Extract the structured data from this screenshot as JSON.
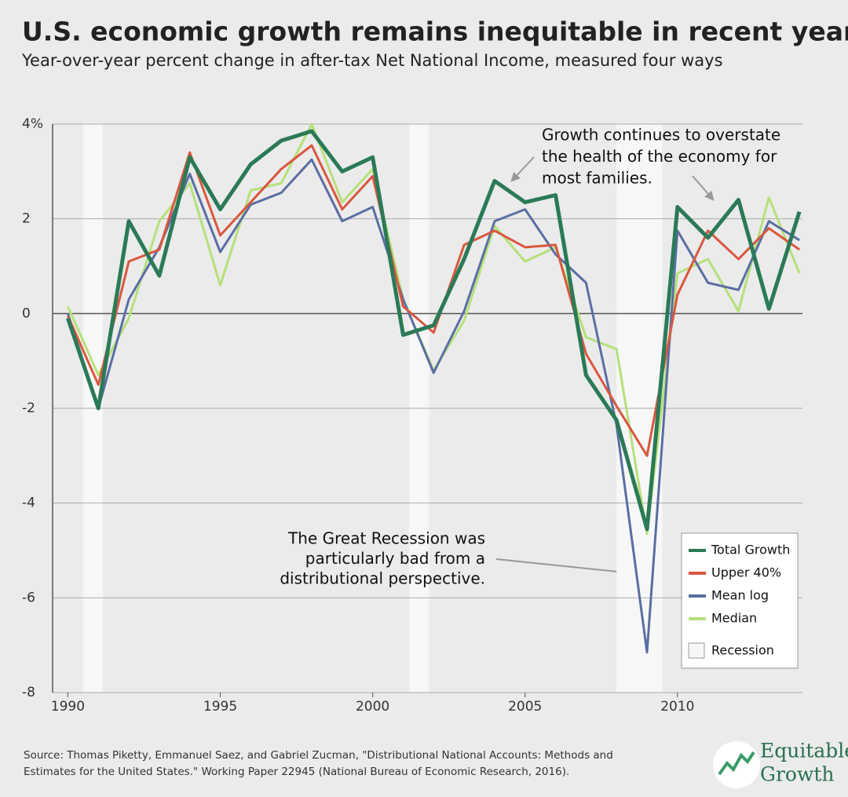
{
  "chart_data": {
    "type": "line",
    "title": "U.S. economic growth remains inequitable in recent years",
    "subtitle": "Year-over-year percent change in after-tax Net National Income, measured four ways",
    "x": [
      1990,
      1991,
      1992,
      1993,
      1994,
      1995,
      1996,
      1997,
      1998,
      1999,
      2000,
      2001,
      2002,
      2003,
      2004,
      2005,
      2006,
      2007,
      2008,
      2009,
      2010,
      2011,
      2012,
      2013,
      2014
    ],
    "series": [
      {
        "name": "Total Growth",
        "color": "#2b7a57",
        "values": [
          -0.1,
          -2.0,
          1.95,
          0.8,
          3.3,
          2.2,
          3.15,
          3.65,
          3.85,
          3.0,
          3.3,
          -0.45,
          -0.25,
          1.15,
          2.8,
          2.35,
          2.5,
          -1.3,
          -2.25,
          -4.55,
          2.25,
          1.6,
          2.4,
          0.1,
          2.15
        ]
      },
      {
        "name": "Upper 40%",
        "color": "#d9573f",
        "values": [
          -0.05,
          -1.5,
          1.1,
          1.35,
          3.4,
          1.65,
          2.35,
          3.05,
          3.55,
          2.2,
          2.9,
          0.15,
          -0.4,
          1.45,
          1.75,
          1.4,
          1.45,
          -0.85,
          -1.95,
          -3.0,
          0.4,
          1.75,
          1.15,
          1.8,
          1.35
        ]
      },
      {
        "name": "Mean log",
        "color": "#5a6ea3",
        "values": [
          0.0,
          -2.0,
          0.3,
          1.4,
          2.95,
          1.3,
          2.3,
          2.55,
          3.25,
          1.95,
          2.25,
          0.3,
          -1.25,
          0.05,
          1.95,
          2.2,
          1.25,
          0.65,
          -2.35,
          -7.15,
          1.75,
          0.65,
          0.5,
          1.95,
          1.55
        ]
      },
      {
        "name": "Median",
        "color": "#b6e07a",
        "values": [
          0.15,
          -1.3,
          -0.1,
          1.95,
          2.75,
          0.6,
          2.6,
          2.75,
          4.0,
          2.35,
          3.05,
          0.3,
          -1.2,
          -0.15,
          1.85,
          1.1,
          1.4,
          -0.5,
          -0.75,
          -4.65,
          0.85,
          1.15,
          0.05,
          2.45,
          0.85
        ]
      }
    ],
    "recessions": [
      [
        1990.5,
        1991.15
      ],
      [
        2001.2,
        2001.85
      ],
      [
        2008.0,
        2009.5
      ]
    ],
    "recession_label": "Recession",
    "xlim": [
      1989.5,
      2014.1
    ],
    "xticks": [
      1990,
      1995,
      2000,
      2005,
      2010
    ],
    "ylim": [
      -8,
      4
    ],
    "yticks": [
      -8,
      -6,
      -4,
      -2,
      0,
      2,
      {
        "value": 4,
        "label": "4%"
      }
    ],
    "grid": true,
    "annotations": [
      {
        "lines": [
          "Growth continues to overstate",
          "the health of the economy for",
          "most families."
        ]
      },
      {
        "lines": [
          "The Great Recession was",
          "particularly bad from a",
          "distributional perspective."
        ]
      }
    ]
  },
  "source": [
    "Source: Thomas Piketty, Emmanuel Saez, and Gabriel Zucman, \"Distributional National Accounts: Methods and",
    "Estimates for the United States.\" Working Paper 22945 (National Bureau of Economic Research, 2016)."
  ],
  "logo": [
    "Equitable",
    "Growth"
  ]
}
